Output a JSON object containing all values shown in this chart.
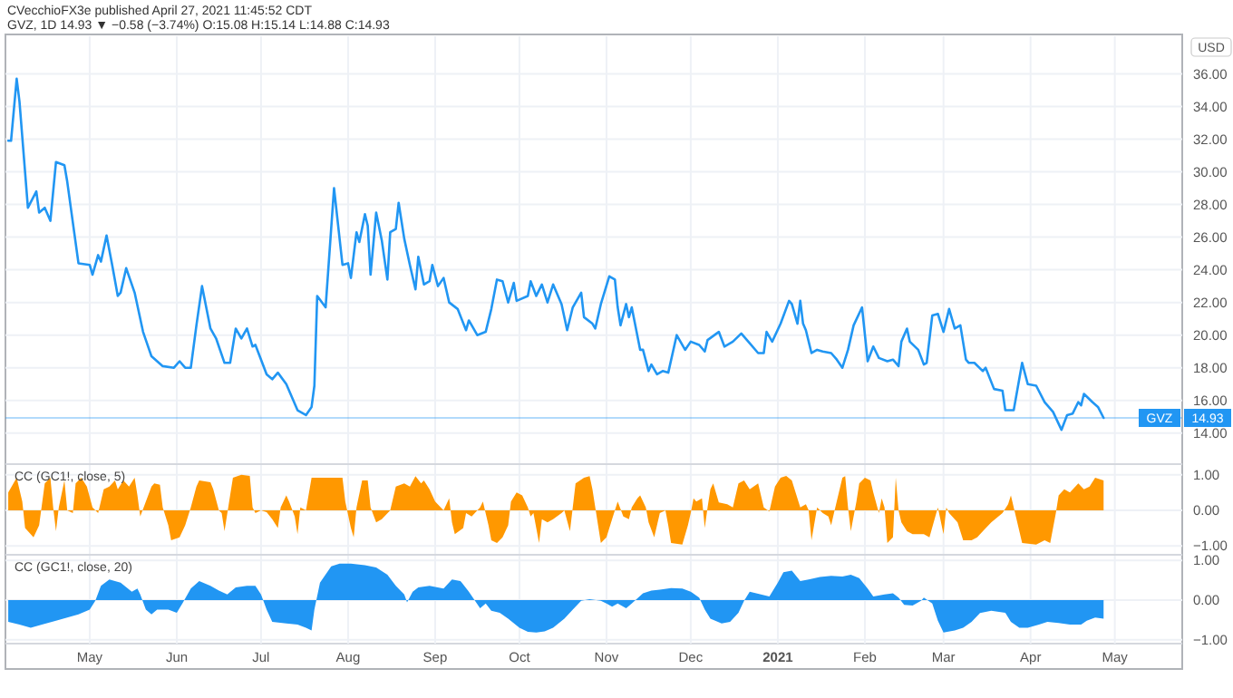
{
  "chart_data": [
    {
      "type": "line",
      "title": "CVecchioFX3e published April 27, 2021 11:45:52 CDT",
      "subtitle": "GVZ, 1D 14.93 ▼ −0.58 (−3.74%) O:15.08 H:15.14 L:14.88 C:14.93",
      "ylabel": "USD",
      "grid": true,
      "tick_labels": "y",
      "annotations": [
        "14.93"
      ],
      "xlim": [
        "2020-04-01",
        "2021-05-25"
      ],
      "xticks": [
        {
          "value": "2020-05-01",
          "label": null
        },
        {
          "value": "2020-06-01",
          "label": null
        },
        {
          "value": "2020-07-01",
          "label": null
        },
        {
          "value": "2020-08-01",
          "label": null
        },
        {
          "value": "2020-09-01",
          "label": null
        },
        {
          "value": "2020-10-01",
          "label": null
        },
        {
          "value": "2020-11-01",
          "label": null
        },
        {
          "value": "2020-12-01",
          "label": null
        },
        {
          "value": "2021-01-01",
          "label": null
        },
        {
          "value": "2021-02-01",
          "label": null
        },
        {
          "value": "2021-03-01",
          "label": null
        },
        {
          "value": "2021-04-01",
          "label": null
        },
        {
          "value": "2021-05-01",
          "label": null
        }
      ],
      "ylim": [
        12.1,
        38.3
      ],
      "yticks": [
        {
          "value": 14,
          "label": "14.00"
        },
        {
          "value": 16,
          "label": "16.00"
        },
        {
          "value": 18,
          "label": "18.00"
        },
        {
          "value": 20,
          "label": "20.00"
        },
        {
          "value": 22,
          "label": "22.00"
        },
        {
          "value": 24,
          "label": "24.00"
        },
        {
          "value": 26,
          "label": "26.00"
        },
        {
          "value": 28,
          "label": "28.00"
        },
        {
          "value": 30,
          "label": "30.00"
        },
        {
          "value": 32,
          "label": "32.00"
        },
        {
          "value": 34,
          "label": "34.00"
        },
        {
          "value": 36,
          "label": "36.00"
        }
      ],
      "ref_lines": [
        {
          "axis": "y",
          "value": 14.93,
          "label": "GVZ",
          "color": "#2196f3"
        }
      ],
      "series": [
        {
          "color": "#2196f3",
          "x": [
            "2020-04-02",
            "2020-04-03",
            "2020-04-05",
            "2020-04-06",
            "2020-04-09",
            "2020-04-12",
            "2020-04-13",
            "2020-04-15",
            "2020-04-17",
            "2020-04-19",
            "2020-04-22",
            "2020-04-23",
            "2020-04-27",
            "2020-05-01",
            "2020-05-02",
            "2020-05-04",
            "2020-05-05",
            "2020-05-07",
            "2020-05-09",
            "2020-05-11",
            "2020-05-12",
            "2020-05-14",
            "2020-05-17",
            "2020-05-20",
            "2020-05-23",
            "2020-05-27",
            "2020-05-31",
            "2020-06-02",
            "2020-06-04",
            "2020-06-06",
            "2020-06-08",
            "2020-06-10",
            "2020-06-13",
            "2020-06-15",
            "2020-06-18",
            "2020-06-20",
            "2020-06-22",
            "2020-06-24",
            "2020-06-26",
            "2020-06-28",
            "2020-06-29",
            "2020-07-03",
            "2020-07-05",
            "2020-07-07",
            "2020-07-10",
            "2020-07-14",
            "2020-07-17",
            "2020-07-19",
            "2020-07-20",
            "2020-07-21",
            "2020-07-24",
            "2020-07-27",
            "2020-07-30",
            "2020-08-01",
            "2020-08-02",
            "2020-08-04",
            "2020-08-05",
            "2020-08-07",
            "2020-08-08",
            "2020-08-09",
            "2020-08-11",
            "2020-08-13",
            "2020-08-15",
            "2020-08-16",
            "2020-08-18",
            "2020-08-19",
            "2020-08-21",
            "2020-08-23",
            "2020-08-25",
            "2020-08-26",
            "2020-08-28",
            "2020-08-30",
            "2020-08-31",
            "2020-09-02",
            "2020-09-04",
            "2020-09-06",
            "2020-09-09",
            "2020-09-12",
            "2020-09-13",
            "2020-09-16",
            "2020-09-19",
            "2020-09-21",
            "2020-09-23",
            "2020-09-25",
            "2020-09-27",
            "2020-09-29",
            "2020-09-30",
            "2020-10-04",
            "2020-10-05",
            "2020-10-07",
            "2020-10-09",
            "2020-10-11",
            "2020-10-13",
            "2020-10-16",
            "2020-10-18",
            "2020-10-20",
            "2020-10-23",
            "2020-10-24",
            "2020-10-27",
            "2020-10-28",
            "2020-10-30",
            "2020-11-02",
            "2020-11-04",
            "2020-11-05",
            "2020-11-06",
            "2020-11-08",
            "2020-11-09",
            "2020-11-10",
            "2020-11-13",
            "2020-11-14",
            "2020-11-16",
            "2020-11-17",
            "2020-11-19",
            "2020-11-21",
            "2020-11-23",
            "2020-11-26",
            "2020-11-29",
            "2020-12-01",
            "2020-12-04",
            "2020-12-06",
            "2020-12-07",
            "2020-12-11",
            "2020-12-13",
            "2020-12-16",
            "2020-12-19",
            "2020-12-22",
            "2020-12-25",
            "2020-12-27",
            "2020-12-28",
            "2020-12-30",
            "2021-01-02",
            "2021-01-05",
            "2021-01-06",
            "2021-01-08",
            "2021-01-09",
            "2021-01-10",
            "2021-01-11",
            "2021-01-13",
            "2021-01-15",
            "2021-01-17",
            "2021-01-20",
            "2021-01-22",
            "2021-01-24",
            "2021-01-26",
            "2021-01-28",
            "2021-01-31",
            "2021-02-02",
            "2021-02-04",
            "2021-02-06",
            "2021-02-09",
            "2021-02-11",
            "2021-02-13",
            "2021-02-14",
            "2021-02-16",
            "2021-02-17",
            "2021-02-20",
            "2021-02-22",
            "2021-02-23",
            "2021-02-25",
            "2021-02-27",
            "2021-03-01",
            "2021-03-03",
            "2021-03-05",
            "2021-03-07",
            "2021-03-09",
            "2021-03-10",
            "2021-03-12",
            "2021-03-15",
            "2021-03-16",
            "2021-03-19",
            "2021-03-22",
            "2021-03-23",
            "2021-03-26",
            "2021-03-29",
            "2021-03-31",
            "2021-04-03",
            "2021-04-06",
            "2021-04-09",
            "2021-04-12",
            "2021-04-14",
            "2021-04-16",
            "2021-04-18",
            "2021-04-19",
            "2021-04-20",
            "2021-04-23",
            "2021-04-25",
            "2021-04-27"
          ],
          "values": [
            31.9,
            31.9,
            35.7,
            34.3,
            27.8,
            28.8,
            27.5,
            27.8,
            27.0,
            30.6,
            30.4,
            29.4,
            24.4,
            24.3,
            23.7,
            24.9,
            24.5,
            26.1,
            24.3,
            22.4,
            22.6,
            24.1,
            22.6,
            20.2,
            18.7,
            18.1,
            18.0,
            18.4,
            18.0,
            18.0,
            20.6,
            23.0,
            20.4,
            19.8,
            18.3,
            18.3,
            20.4,
            19.8,
            20.4,
            19.3,
            19.4,
            17.6,
            17.3,
            17.7,
            17.0,
            15.4,
            15.1,
            15.6,
            16.9,
            22.4,
            21.7,
            29.0,
            24.3,
            24.4,
            23.5,
            26.3,
            25.7,
            27.4,
            26.7,
            23.7,
            27.5,
            25.8,
            23.4,
            26.3,
            26.5,
            28.1,
            25.9,
            24.3,
            22.8,
            24.8,
            23.1,
            23.3,
            24.3,
            23.0,
            23.5,
            22.0,
            21.6,
            20.3,
            20.9,
            20.0,
            20.2,
            21.6,
            23.4,
            23.3,
            22.0,
            23.2,
            22.1,
            22.4,
            23.3,
            22.4,
            23.1,
            22.0,
            23.1,
            21.9,
            20.3,
            21.7,
            22.6,
            21.1,
            20.7,
            20.4,
            21.9,
            23.6,
            23.4,
            21.7,
            20.6,
            21.9,
            21.1,
            21.7,
            19.1,
            19.1,
            17.8,
            18.2,
            17.6,
            17.8,
            17.7,
            20.0,
            19.1,
            19.6,
            19.4,
            19.0,
            19.7,
            20.2,
            19.3,
            19.6,
            20.1,
            19.5,
            18.9,
            18.9,
            20.2,
            19.6,
            20.7,
            22.1,
            21.9,
            20.7,
            22.1,
            20.7,
            20.3,
            18.9,
            19.1,
            19.0,
            18.9,
            18.5,
            18.0,
            19.1,
            20.6,
            21.7,
            18.4,
            19.3,
            18.6,
            18.4,
            18.5,
            18.1,
            19.6,
            20.4,
            19.6,
            19.1,
            18.2,
            18.3,
            21.2,
            21.3,
            20.2,
            21.6,
            20.4,
            20.6,
            18.5,
            18.3,
            18.3,
            17.8,
            18.0,
            16.7,
            16.6,
            15.4,
            15.4,
            18.3,
            17.0,
            16.9,
            15.9,
            15.3,
            14.2,
            15.1,
            15.2,
            15.9,
            15.7,
            16.4,
            15.9,
            15.6,
            14.93
          ]
        }
      ]
    },
    {
      "type": "area",
      "title": "CC (GC1!, close, 5)",
      "grid": true,
      "tick_labels": "y",
      "color": "#ff9800",
      "xlim": [
        "2020-04-01",
        "2021-05-25"
      ],
      "xticks": [
        {
          "value": "2020-05-01",
          "label": null
        },
        {
          "value": "2020-06-01",
          "label": null
        },
        {
          "value": "2020-07-01",
          "label": null
        },
        {
          "value": "2020-08-01",
          "label": null
        },
        {
          "value": "2020-09-01",
          "label": null
        },
        {
          "value": "2020-10-01",
          "label": null
        },
        {
          "value": "2020-11-01",
          "label": null
        },
        {
          "value": "2020-12-01",
          "label": null
        },
        {
          "value": "2021-01-01",
          "label": null
        },
        {
          "value": "2021-02-01",
          "label": null
        },
        {
          "value": "2021-03-01",
          "label": null
        },
        {
          "value": "2021-04-01",
          "label": null
        },
        {
          "value": "2021-05-01",
          "label": null
        }
      ],
      "ylim": [
        -1.25,
        1.3
      ],
      "yticks": [
        {
          "value": -1,
          "label": "−1.00"
        },
        {
          "value": 0,
          "label": "0.00"
        },
        {
          "value": 1,
          "label": "1.00"
        }
      ],
      "x": [
        "2020-04-02",
        "2020-04-05",
        "2020-04-07",
        "2020-04-08",
        "2020-04-11",
        "2020-04-13",
        "2020-04-15",
        "2020-04-17",
        "2020-04-18",
        "2020-04-19",
        "2020-04-20",
        "2020-04-22",
        "2020-04-23",
        "2020-04-25",
        "2020-04-26",
        "2020-04-28",
        "2020-04-30",
        "2020-05-02",
        "2020-05-04",
        "2020-05-06",
        "2020-05-08",
        "2020-05-10",
        "2020-05-11",
        "2020-05-13",
        "2020-05-15",
        "2020-05-17",
        "2020-05-18",
        "2020-05-19",
        "2020-05-21",
        "2020-05-23",
        "2020-05-24",
        "2020-05-26",
        "2020-05-27",
        "2020-05-29",
        "2020-05-30",
        "2020-06-02",
        "2020-06-04",
        "2020-06-06",
        "2020-06-08",
        "2020-06-09",
        "2020-06-13",
        "2020-06-14",
        "2020-06-16",
        "2020-06-17",
        "2020-06-18",
        "2020-06-20",
        "2020-06-21",
        "2020-06-24",
        "2020-06-27",
        "2020-06-28",
        "2020-06-29",
        "2020-07-01",
        "2020-07-03",
        "2020-07-05",
        "2020-07-07",
        "2020-07-08",
        "2020-07-10",
        "2020-07-11",
        "2020-07-13",
        "2020-07-14",
        "2020-07-15",
        "2020-07-17",
        "2020-07-19",
        "2020-07-22",
        "2020-07-27",
        "2020-07-30",
        "2020-07-31",
        "2020-08-02",
        "2020-08-03",
        "2020-08-04",
        "2020-08-06",
        "2020-08-08",
        "2020-08-09",
        "2020-08-11",
        "2020-08-13",
        "2020-08-16",
        "2020-08-18",
        "2020-08-21",
        "2020-08-23",
        "2020-08-25",
        "2020-08-27",
        "2020-08-28",
        "2020-08-30",
        "2020-09-01",
        "2020-09-04",
        "2020-09-06",
        "2020-09-07",
        "2020-09-08",
        "2020-09-11",
        "2020-09-12",
        "2020-09-14",
        "2020-09-17",
        "2020-09-18",
        "2020-09-20",
        "2020-09-21",
        "2020-09-23",
        "2020-09-25",
        "2020-09-27",
        "2020-09-28",
        "2020-09-30",
        "2020-10-02",
        "2020-10-04",
        "2020-10-05",
        "2020-10-06",
        "2020-10-08",
        "2020-10-09",
        "2020-10-11",
        "2020-10-13",
        "2020-10-16",
        "2020-10-17",
        "2020-10-19",
        "2020-10-20",
        "2020-10-21",
        "2020-10-24",
        "2020-10-26",
        "2020-10-27",
        "2020-10-30",
        "2020-11-01",
        "2020-11-03",
        "2020-11-05",
        "2020-11-07",
        "2020-11-09",
        "2020-11-10",
        "2020-11-12",
        "2020-11-13",
        "2020-11-15",
        "2020-11-16",
        "2020-11-18",
        "2020-11-20",
        "2020-11-22",
        "2020-11-23",
        "2020-11-24",
        "2020-11-28",
        "2020-11-30",
        "2020-12-01",
        "2020-12-02",
        "2020-12-03",
        "2020-12-05",
        "2020-12-06",
        "2020-12-07",
        "2020-12-08",
        "2020-12-09",
        "2020-12-11",
        "2020-12-14",
        "2020-12-16",
        "2020-12-18",
        "2020-12-20",
        "2020-12-22",
        "2020-12-25",
        "2020-12-27",
        "2020-12-29",
        "2020-12-31",
        "2021-01-02",
        "2021-01-04",
        "2021-01-06",
        "2021-01-09",
        "2021-01-11",
        "2021-01-12",
        "2021-01-13",
        "2021-01-15",
        "2021-01-17",
        "2021-01-19",
        "2021-01-20",
        "2021-01-21",
        "2021-01-24",
        "2021-01-25",
        "2021-01-26",
        "2021-01-27",
        "2021-01-29",
        "2021-01-30",
        "2021-02-01",
        "2021-02-03",
        "2021-02-04",
        "2021-02-06",
        "2021-02-07",
        "2021-02-08",
        "2021-02-09",
        "2021-02-11",
        "2021-02-12",
        "2021-02-13",
        "2021-02-14",
        "2021-02-16",
        "2021-02-18",
        "2021-02-22",
        "2021-02-24",
        "2021-02-27",
        "2021-03-01",
        "2021-03-02",
        "2021-03-03",
        "2021-03-06",
        "2021-03-08",
        "2021-03-11",
        "2021-03-13",
        "2021-03-15",
        "2021-03-18",
        "2021-03-22",
        "2021-03-24",
        "2021-03-25",
        "2021-03-26",
        "2021-03-27",
        "2021-03-29",
        "2021-04-03",
        "2021-04-06",
        "2021-04-08",
        "2021-04-10",
        "2021-04-11",
        "2021-04-13",
        "2021-04-15",
        "2021-04-18",
        "2021-04-20",
        "2021-04-22",
        "2021-04-24",
        "2021-04-27"
      ],
      "values": [
        0.5,
        0.92,
        0.25,
        -0.5,
        -0.76,
        -0.42,
        0.76,
        0.92,
        0.08,
        -0.59,
        0.08,
        0.84,
        0,
        -0.08,
        0.76,
        0.92,
        0.67,
        0.08,
        -0.08,
        0.59,
        0.67,
        0.84,
        0.59,
        0.84,
        0.67,
        0.92,
        0.42,
        -0.17,
        0.25,
        0.67,
        0.76,
        0.72,
        0.08,
        -0.42,
        -0.84,
        -0.76,
        -0.42,
        0.08,
        0.67,
        0.84,
        0.79,
        0.59,
        0,
        -0.08,
        -0.59,
        0.42,
        0.92,
        1.0,
        0.97,
        0.08,
        -0.08,
        0,
        -0.05,
        -0.25,
        -0.5,
        0.08,
        0.42,
        0.25,
        -0.17,
        -0.67,
        0.08,
        0,
        0.92,
        0.92,
        0.92,
        0.92,
        0.25,
        -0.5,
        -0.76,
        0.08,
        0.84,
        0.84,
        0.08,
        -0.34,
        -0.25,
        0,
        0.67,
        0.76,
        0.67,
        0.96,
        0.76,
        0.84,
        0.59,
        0.25,
        0,
        0.34,
        -0.34,
        -0.67,
        -0.5,
        -0.08,
        -0.17,
        0.08,
        0.25,
        -0.42,
        -0.84,
        -0.92,
        -0.76,
        -0.42,
        0.25,
        0.5,
        0.42,
        0.08,
        -0.17,
        -0.08,
        -0.92,
        -0.25,
        -0.34,
        -0.25,
        -0.08,
        0,
        -0.59,
        0.08,
        0.76,
        0.92,
        0.96,
        0.59,
        -0.92,
        -0.76,
        -0.25,
        0.25,
        -0.17,
        -0.25,
        0.08,
        0.34,
        0.42,
        0.08,
        -0.34,
        -0.76,
        -0.08,
        0,
        -0.42,
        -0.92,
        -0.96,
        -0.42,
        -0.08,
        0.34,
        0.25,
        0.34,
        -0.5,
        0.08,
        0.59,
        0.76,
        0.22,
        0.17,
        0.08,
        0.76,
        0.84,
        0.59,
        0.76,
        0.08,
        -0.03,
        0.67,
        0.92,
        0.97,
        0.84,
        0.08,
        0.17,
        0,
        -0.84,
        0.08,
        -0.08,
        -0.17,
        -0.42,
        -0.08,
        0.92,
        0.96,
        0.08,
        -0.59,
        0.25,
        0.76,
        0.92,
        0.84,
        0.5,
        -0.08,
        0.34,
        0.08,
        -0.92,
        -0.76,
        0.92,
        0,
        -0.34,
        -0.59,
        -0.67,
        -0.67,
        -0.76,
        0.08,
        -0.67,
        0.08,
        -0.08,
        -0.34,
        -0.84,
        -0.84,
        -0.76,
        -0.59,
        -0.34,
        -0.08,
        0.17,
        0.42,
        0.08,
        -0.25,
        -0.92,
        -0.96,
        -0.84,
        -0.92,
        -0.08,
        0.42,
        0.59,
        0.5,
        0.76,
        0.59,
        0.67,
        0.92,
        0.84
      ]
    },
    {
      "type": "area",
      "title": "CC (GC1!, close, 20)",
      "grid": true,
      "color": "#2196f3",
      "xlim": [
        "2020-04-01",
        "2021-05-25"
      ],
      "xticks": [
        {
          "value": "2020-05-01",
          "label": "May"
        },
        {
          "value": "2020-06-01",
          "label": "Jun"
        },
        {
          "value": "2020-07-01",
          "label": "Jul"
        },
        {
          "value": "2020-08-01",
          "label": "Aug"
        },
        {
          "value": "2020-09-01",
          "label": "Sep"
        },
        {
          "value": "2020-10-01",
          "label": "Oct"
        },
        {
          "value": "2020-11-01",
          "label": "Nov"
        },
        {
          "value": "2020-12-01",
          "label": "Dec"
        },
        {
          "value": "2021-01-01",
          "label": "2021"
        },
        {
          "value": "2021-02-01",
          "label": "Feb"
        },
        {
          "value": "2021-03-01",
          "label": "Mar"
        },
        {
          "value": "2021-04-01",
          "label": "Apr"
        },
        {
          "value": "2021-05-01",
          "label": "May"
        }
      ],
      "ylim": [
        -1.1,
        1.14
      ],
      "yticks": [
        {
          "value": -1,
          "label": "−1.00"
        },
        {
          "value": 0,
          "label": "0.00"
        },
        {
          "value": 1,
          "label": "1.00"
        }
      ],
      "x": [
        "2020-04-02",
        "2020-04-06",
        "2020-04-10",
        "2020-04-14",
        "2020-04-19",
        "2020-04-23",
        "2020-04-27",
        "2020-05-01",
        "2020-05-03",
        "2020-05-05",
        "2020-05-08",
        "2020-05-12",
        "2020-05-16",
        "2020-05-18",
        "2020-05-19",
        "2020-05-21",
        "2020-05-23",
        "2020-05-25",
        "2020-05-29",
        "2020-06-01",
        "2020-06-03",
        "2020-06-06",
        "2020-06-09",
        "2020-06-13",
        "2020-06-16",
        "2020-06-19",
        "2020-06-22",
        "2020-06-26",
        "2020-06-29",
        "2020-07-01",
        "2020-07-03",
        "2020-07-05",
        "2020-07-10",
        "2020-07-14",
        "2020-07-17",
        "2020-07-19",
        "2020-07-20",
        "2020-07-22",
        "2020-07-26",
        "2020-07-29",
        "2020-08-02",
        "2020-08-07",
        "2020-08-11",
        "2020-08-15",
        "2020-08-18",
        "2020-08-21",
        "2020-08-22",
        "2020-08-24",
        "2020-08-26",
        "2020-08-30",
        "2020-09-04",
        "2020-09-07",
        "2020-09-10",
        "2020-09-13",
        "2020-09-17",
        "2020-09-19",
        "2020-09-21",
        "2020-09-24",
        "2020-09-27",
        "2020-10-01",
        "2020-10-04",
        "2020-10-07",
        "2020-10-10",
        "2020-10-13",
        "2020-10-17",
        "2020-10-20",
        "2020-10-23",
        "2020-10-26",
        "2020-10-30",
        "2020-11-01",
        "2020-11-03",
        "2020-11-05",
        "2020-11-08",
        "2020-11-10",
        "2020-11-14",
        "2020-11-17",
        "2020-11-20",
        "2020-11-24",
        "2020-11-28",
        "2020-12-01",
        "2020-12-04",
        "2020-12-06",
        "2020-12-08",
        "2020-12-12",
        "2020-12-15",
        "2020-12-18",
        "2020-12-20",
        "2020-12-22",
        "2020-12-26",
        "2020-12-29",
        "2021-01-01",
        "2021-01-03",
        "2021-01-06",
        "2021-01-09",
        "2021-01-12",
        "2021-01-16",
        "2021-01-20",
        "2021-01-24",
        "2021-01-27",
        "2021-01-30",
        "2021-02-02",
        "2021-02-04",
        "2021-02-08",
        "2021-02-11",
        "2021-02-13",
        "2021-02-15",
        "2021-02-18",
        "2021-02-21",
        "2021-02-22",
        "2021-02-25",
        "2021-02-27",
        "2021-03-01",
        "2021-03-05",
        "2021-03-08",
        "2021-03-11",
        "2021-03-14",
        "2021-03-18",
        "2021-03-23",
        "2021-03-25",
        "2021-03-28",
        "2021-03-31",
        "2021-04-04",
        "2021-04-07",
        "2021-04-11",
        "2021-04-15",
        "2021-04-19",
        "2021-04-21",
        "2021-04-24",
        "2021-04-27"
      ],
      "values": [
        -0.55,
        -0.62,
        -0.7,
        -0.62,
        -0.52,
        -0.44,
        -0.36,
        -0.24,
        -0.02,
        0.36,
        0.52,
        0.44,
        0.21,
        0.29,
        0.14,
        -0.24,
        -0.36,
        -0.24,
        -0.24,
        -0.32,
        -0.09,
        0.29,
        0.48,
        0.36,
        0.24,
        0.14,
        0.32,
        0.36,
        0.36,
        0.14,
        -0.24,
        -0.55,
        -0.59,
        -0.62,
        -0.7,
        -0.77,
        -0.24,
        0.44,
        0.85,
        0.92,
        0.92,
        0.88,
        0.82,
        0.64,
        0.36,
        0.14,
        -0.06,
        0.21,
        0.32,
        0.36,
        0.29,
        0.52,
        0.48,
        0.21,
        -0.21,
        -0.09,
        -0.27,
        -0.32,
        -0.47,
        -0.7,
        -0.8,
        -0.82,
        -0.79,
        -0.7,
        -0.47,
        -0.24,
        -0.02,
        0.02,
        -0.02,
        -0.09,
        -0.17,
        -0.09,
        -0.21,
        -0.09,
        0.17,
        0.24,
        0.26,
        0.3,
        0.29,
        0.21,
        0.06,
        -0.24,
        -0.47,
        -0.59,
        -0.55,
        -0.32,
        -0.02,
        0.21,
        0.14,
        0.09,
        0.44,
        0.7,
        0.74,
        0.48,
        0.52,
        0.58,
        0.61,
        0.59,
        0.64,
        0.55,
        0.29,
        0.09,
        0.14,
        0.17,
        0.06,
        -0.12,
        -0.14,
        -0.02,
        0.06,
        -0.09,
        -0.52,
        -0.82,
        -0.77,
        -0.7,
        -0.55,
        -0.33,
        -0.27,
        -0.32,
        -0.55,
        -0.7,
        -0.7,
        -0.62,
        -0.55,
        -0.58,
        -0.62,
        -0.62,
        -0.52,
        -0.44,
        -0.47
      ]
    }
  ]
}
